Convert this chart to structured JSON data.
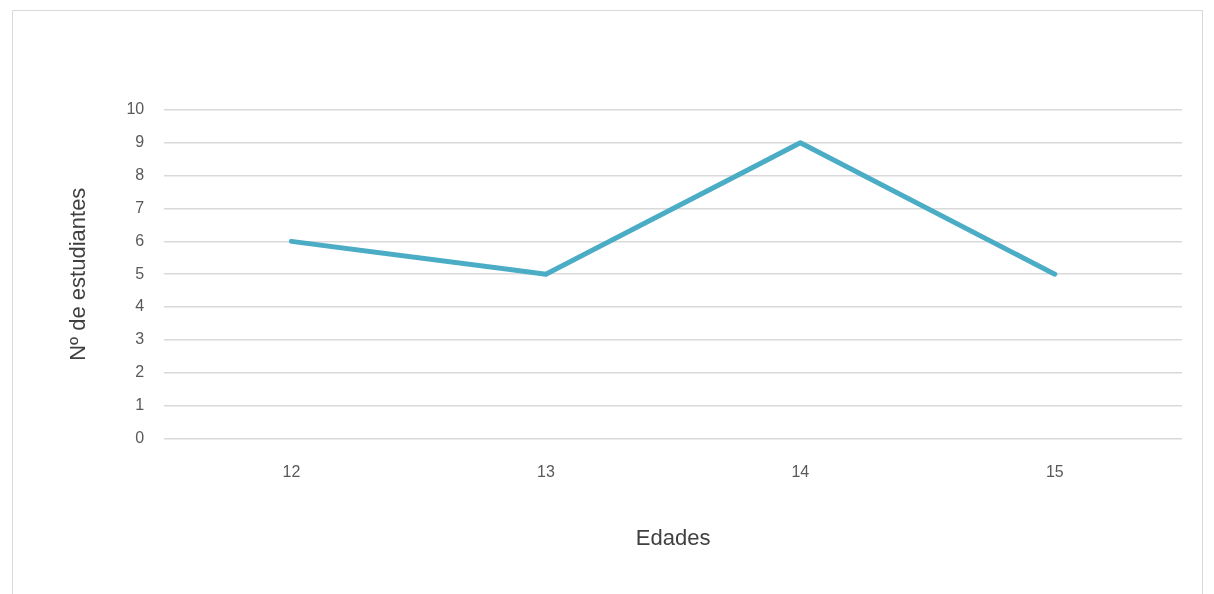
{
  "chart_data": {
    "type": "line",
    "xlabel": "Edades",
    "ylabel": "Nº de estudiantes",
    "categories": [
      "12",
      "13",
      "14",
      "15"
    ],
    "series": [
      {
        "color": "#4bacc6",
        "values": [
          6,
          5,
          9,
          5
        ]
      }
    ],
    "ylim": [
      0,
      10
    ],
    "yticks": [
      0,
      1,
      2,
      3,
      4,
      5,
      6,
      7,
      8,
      9,
      10
    ],
    "grid": "y",
    "legend": false,
    "marker": "none",
    "line_style": "solid"
  }
}
